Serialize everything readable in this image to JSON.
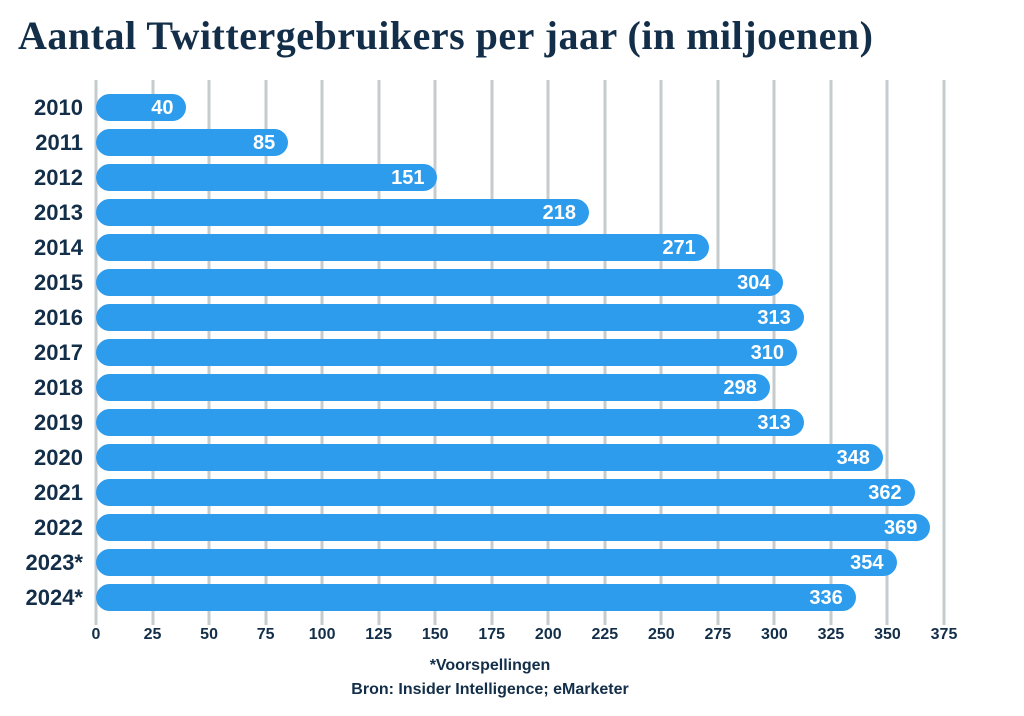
{
  "title": "Aantal Twittergebruikers per jaar (in miljoenen)",
  "chart_data": {
    "type": "bar",
    "orientation": "horizontal",
    "title": "Aantal Twittergebruikers per jaar (in miljoenen)",
    "categories": [
      "2010",
      "2011",
      "2012",
      "2013",
      "2014",
      "2015",
      "2016",
      "2017",
      "2018",
      "2019",
      "2020",
      "2021",
      "2022",
      "2023*",
      "2024*"
    ],
    "values": [
      40,
      85,
      151,
      218,
      271,
      304,
      313,
      310,
      298,
      313,
      348,
      362,
      369,
      354,
      336
    ],
    "xlabel": "",
    "ylabel": "",
    "xlim": [
      0,
      375
    ],
    "x_ticks": [
      0,
      25,
      50,
      75,
      100,
      125,
      150,
      175,
      200,
      225,
      250,
      275,
      300,
      325,
      350,
      375
    ],
    "grid": true,
    "legend": "none",
    "colors": {
      "bar": "#2D9CED",
      "gridline": "#C6CBCE",
      "text": "#132E48",
      "value_label": "#FFFFFF",
      "background": "#FFFFFF"
    }
  },
  "footnotes": {
    "prediction_note": "*Voorspellingen",
    "source": "Bron: Insider Intelligence; eMarketer"
  }
}
